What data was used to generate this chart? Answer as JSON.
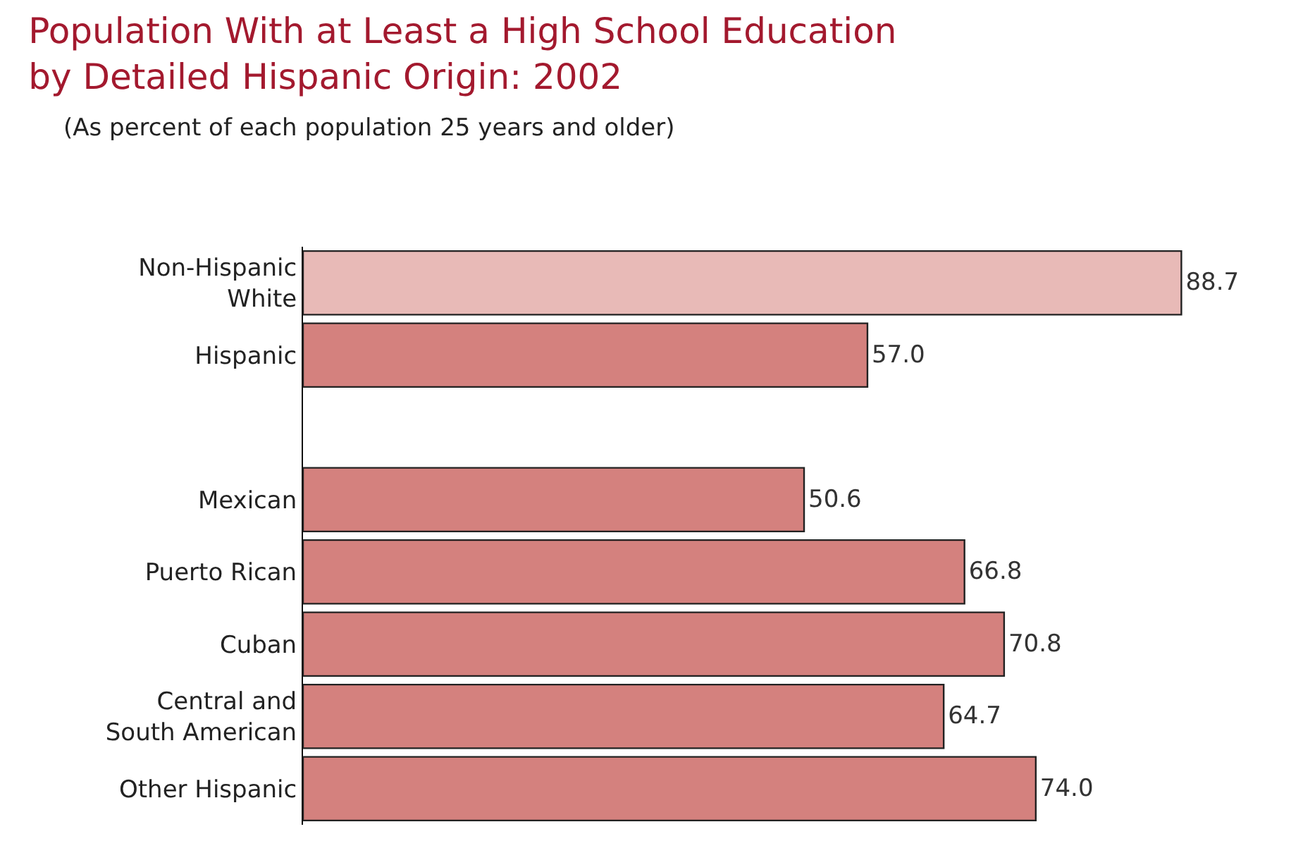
{
  "chart_data": {
    "type": "bar",
    "orientation": "horizontal",
    "title": "Population With at Least a High School Education by Detailed Hispanic Origin: 2002",
    "subtitle": "(As percent of each population 25 years and older)",
    "categories": [
      "Non-Hispanic White",
      "Hispanic",
      null,
      "Mexican",
      "Puerto Rican",
      "Cuban",
      "Central and South American",
      "Other Hispanic"
    ],
    "values": [
      88.7,
      57.0,
      null,
      50.6,
      66.8,
      70.8,
      64.7,
      74.0
    ],
    "colors": [
      "#e8bab7",
      "#d4817e",
      "#d4817e",
      "#d4817e",
      "#d4817e",
      "#d4817e",
      "#d4817e",
      "#d4817e"
    ],
    "value_labels": [
      "88.7",
      "57.0",
      null,
      "50.6",
      "66.8",
      "70.8",
      "64.7",
      "74.0"
    ],
    "tick_labels": "y"
  }
}
